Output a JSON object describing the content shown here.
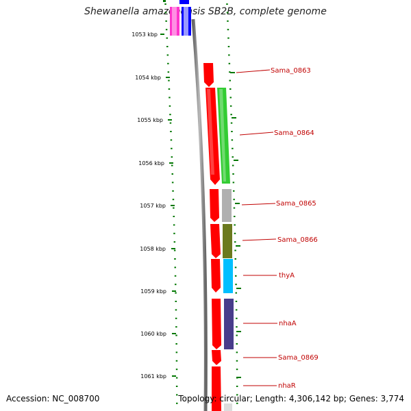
{
  "title": "Shewanella amazonensis SB2B, complete genome",
  "footer": {
    "accession": "Accession: NC_008700",
    "topology": "Topology: circular; Length: 4,306,142 bp; Genes: 3,774"
  },
  "scale": {
    "unit": "kbp",
    "labels": [
      "1053 kbp",
      "1054 kbp",
      "1055 kbp",
      "1056 kbp",
      "1057 kbp",
      "1058 kbp",
      "1059 kbp",
      "1060 kbp",
      "1061 kbp"
    ]
  },
  "gene_labels": [
    "Sama_0863",
    "Sama_0864",
    "Sama_0865",
    "Sama_0866",
    "thyA",
    "nhaA",
    "Sama_0869",
    "nhaR"
  ],
  "colors": {
    "cds": "#ff0000",
    "backbone": "#808080",
    "ticks": "#007700",
    "label": "#c00000",
    "Sama_0864": "#33cc33",
    "Sama_0865": "#b0b0b0",
    "Sama_0866": "#6b7a1e",
    "thyA": "#00bfff",
    "nhaA": "#483d8b",
    "top_pink": "#ff33cc",
    "top_blue": "#0000ff"
  }
}
